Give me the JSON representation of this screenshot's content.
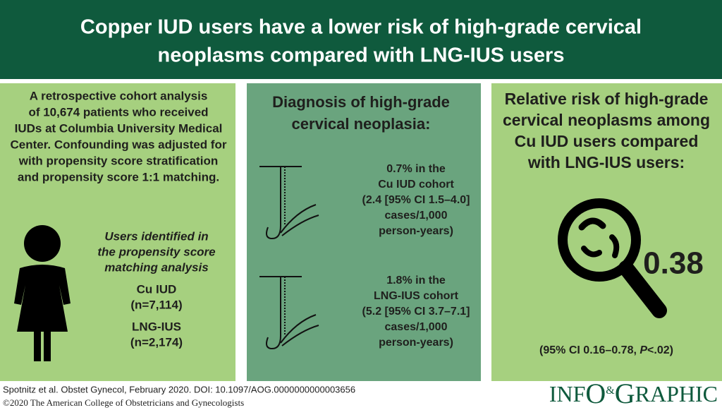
{
  "header": {
    "title_lines": [
      "Copper IUD users have a lower risk of high-grade cervical",
      "neoplasms compared with LNG-IUS users"
    ]
  },
  "left": {
    "description_lines": [
      "A retrospective cohort analysis",
      "of 10,674 patients who received",
      "IUDs at Columbia University Medical",
      "Center. Confounding was adjusted for",
      "with propensity score stratification",
      "and propensity score 1:1 matching."
    ],
    "users_heading_lines": [
      "Users identified in",
      "the propensity score",
      "matching analysis"
    ],
    "groups": [
      {
        "name": "Cu IUD",
        "n": "(n=7,114)"
      },
      {
        "name": "LNG-IUS",
        "n": "(n=2,174)"
      }
    ]
  },
  "middle": {
    "title_lines": [
      "Diagnosis of high-grade",
      "cervical neoplasia:"
    ],
    "findings": [
      {
        "lines": [
          "0.7% in the",
          "Cu IUD cohort",
          "(2.4 [95% CI 1.5–4.0]",
          "cases/1,000",
          "person-years)"
        ]
      },
      {
        "lines": [
          "1.8% in the",
          "LNG-IUS cohort",
          "(5.2 [95% CI 3.7–7.1]",
          "cases/1,000",
          "person-years)"
        ]
      }
    ]
  },
  "right": {
    "title_lines": [
      "Relative risk of high-grade",
      "cervical neoplasms among",
      "Cu IUD users compared",
      "with LNG-IUS users:"
    ],
    "value": "0.38",
    "ci_prefix": "(95% CI 0.16–0.78, ",
    "ci_p": "P",
    "ci_suffix": "<.02)"
  },
  "footer": {
    "citation": "Spotnitz et al. Obstet Gynecol, February 2020. DOI: 10.1097/AOG.0000000000003656",
    "copyright": "©2020 The American College of Obstetricians and Gynecologists",
    "logo": [
      "INF",
      "O",
      "&",
      "G",
      "RAPHIC"
    ]
  }
}
